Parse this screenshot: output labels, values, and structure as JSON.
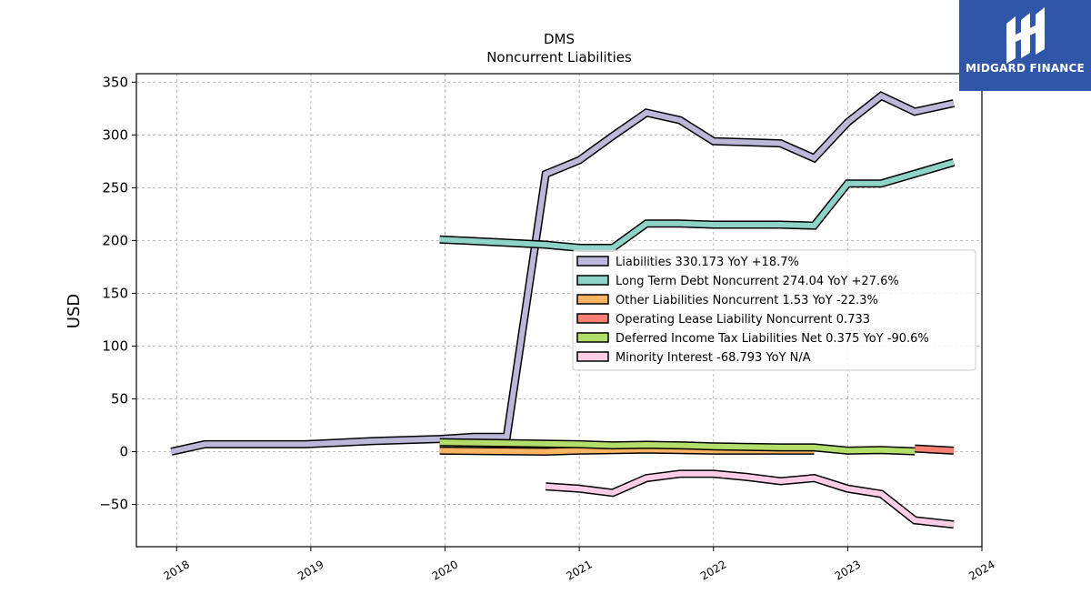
{
  "chart_data": {
    "type": "line",
    "title": "DMS",
    "subtitle": "Noncurrent  Liabilities",
    "ylabel": "USD",
    "xlabel": "",
    "xlim": [
      2017.7,
      2024.0
    ],
    "ylim": [
      -90,
      358
    ],
    "x_ticks": [
      2018,
      2019,
      2020,
      2021,
      2022,
      2023,
      2024
    ],
    "y_ticks": [
      -50,
      0,
      50,
      100,
      150,
      200,
      250,
      300,
      350
    ],
    "grid": true,
    "legend_position": "center-right",
    "series": [
      {
        "name": "Liabilities  330.173 YoY +18.7%",
        "color": "#bcb8d9",
        "points": [
          [
            2017.96,
            0
          ],
          [
            2018.21,
            7
          ],
          [
            2018.71,
            7
          ],
          [
            2018.96,
            7
          ],
          [
            2019.46,
            10
          ],
          [
            2019.96,
            12
          ],
          [
            2020.21,
            14
          ],
          [
            2020.46,
            14
          ],
          [
            2020.75,
            263
          ],
          [
            2021.0,
            276
          ],
          [
            2021.25,
            299
          ],
          [
            2021.5,
            321
          ],
          [
            2021.75,
            314
          ],
          [
            2022.0,
            294
          ],
          [
            2022.25,
            293
          ],
          [
            2022.5,
            292
          ],
          [
            2022.75,
            278
          ],
          [
            2023.0,
            312
          ],
          [
            2023.25,
            337
          ],
          [
            2023.5,
            322
          ],
          [
            2023.79,
            330
          ]
        ]
      },
      {
        "name": "Long Term Debt Noncurrent  274.04 YoY +27.6%",
        "color": "#8dd3c7",
        "points": [
          [
            2019.96,
            201
          ],
          [
            2020.75,
            196
          ],
          [
            2021.0,
            193
          ],
          [
            2021.25,
            193
          ],
          [
            2021.5,
            216
          ],
          [
            2021.75,
            216
          ],
          [
            2022.0,
            215
          ],
          [
            2022.25,
            215
          ],
          [
            2022.5,
            215
          ],
          [
            2022.75,
            214
          ],
          [
            2023.0,
            254
          ],
          [
            2023.25,
            254
          ],
          [
            2023.79,
            274
          ]
        ]
      },
      {
        "name": "Other Liabilities Noncurrent  1.53 YoY -22.3%",
        "color": "#fdb462",
        "points": [
          [
            2019.96,
            1
          ],
          [
            2020.75,
            0
          ],
          [
            2021.0,
            1
          ],
          [
            2021.5,
            2
          ],
          [
            2021.75,
            1.5
          ],
          [
            2022.0,
            1
          ],
          [
            2022.5,
            1
          ],
          [
            2022.75,
            1
          ]
        ]
      },
      {
        "name": "Operating Lease Liability Noncurrent  0.733",
        "color": "#fb8072",
        "points": [
          [
            2023.5,
            3
          ],
          [
            2023.79,
            1
          ]
        ]
      },
      {
        "name": "Deferred Income Tax Liabilities Net  0.375 YoY -90.6%",
        "color": "#b3de69",
        "points": [
          [
            2019.96,
            9
          ],
          [
            2020.5,
            8
          ],
          [
            2021.0,
            7
          ],
          [
            2021.25,
            6
          ],
          [
            2021.5,
            6.5
          ],
          [
            2021.75,
            6
          ],
          [
            2022.0,
            5
          ],
          [
            2022.5,
            4
          ],
          [
            2022.75,
            4
          ],
          [
            2023.0,
            1
          ],
          [
            2023.25,
            1.5
          ],
          [
            2023.5,
            0.4
          ]
        ]
      },
      {
        "name": "Minority Interest  -68.793 YoY N/A",
        "color": "#fccde5",
        "points": [
          [
            2020.75,
            -33
          ],
          [
            2021.0,
            -35
          ],
          [
            2021.25,
            -39
          ],
          [
            2021.5,
            -25
          ],
          [
            2021.75,
            -21
          ],
          [
            2022.0,
            -21
          ],
          [
            2022.25,
            -24
          ],
          [
            2022.5,
            -28
          ],
          [
            2022.75,
            -25
          ],
          [
            2023.0,
            -35
          ],
          [
            2023.25,
            -40
          ],
          [
            2023.5,
            -65
          ],
          [
            2023.79,
            -69
          ]
        ]
      }
    ]
  },
  "logo": {
    "text": "MIDGARD FINANCE"
  }
}
